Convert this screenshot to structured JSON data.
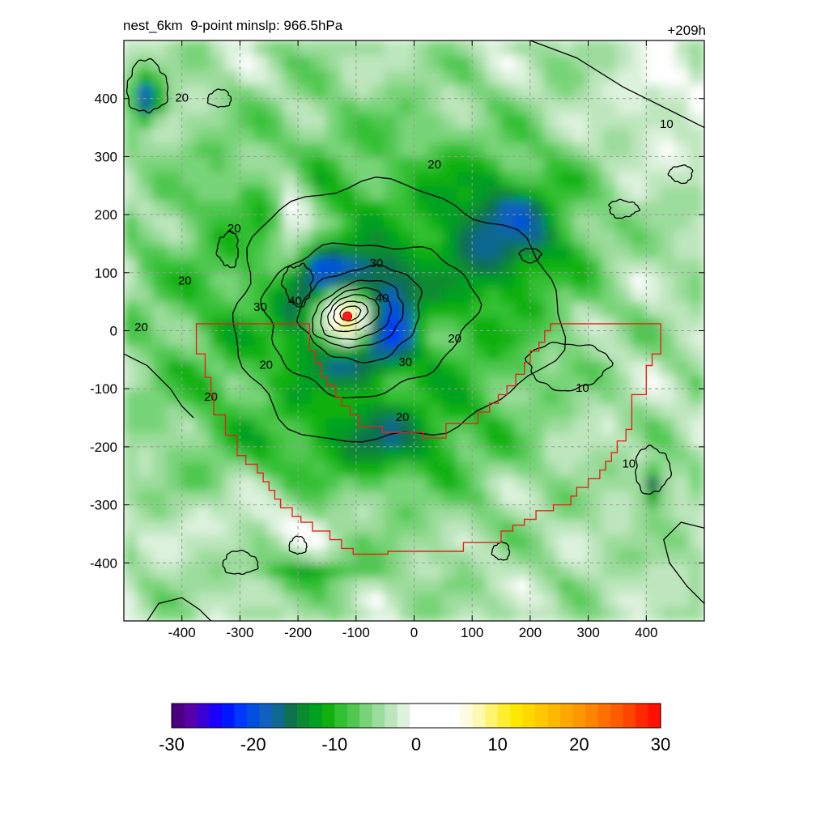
{
  "title_left": "nest_6km  9-point minslp: 966.5hPa",
  "title_right": "+209h",
  "chart_data": {
    "type": "heatmap",
    "title": "nest_6km  9-point minslp: 966.5hPa",
    "forecast_hour_label": "+209h",
    "x_ticks": [
      -400,
      -300,
      -200,
      -100,
      0,
      100,
      200,
      300,
      400
    ],
    "y_ticks": [
      400,
      300,
      200,
      100,
      0,
      -100,
      -200,
      -300,
      -400
    ],
    "xlim": [
      -500,
      500
    ],
    "ylim": [
      -500,
      500
    ],
    "grid": true,
    "grid_style": "dashed",
    "colorbar": {
      "min": -30,
      "max": 30,
      "tick_values": [
        -30,
        -20,
        -10,
        0,
        10,
        20,
        30
      ],
      "tick_labels": [
        "-30",
        "-20",
        "-10",
        "0",
        "10",
        "20",
        "30"
      ],
      "colors": [
        "#4b0082",
        "#5a00a8",
        "#3a00d4",
        "#1a00ff",
        "#0018ff",
        "#0038ff",
        "#0050e0",
        "#1060c0",
        "#106890",
        "#107050",
        "#0a8a30",
        "#00a020",
        "#10b010",
        "#30c030",
        "#50c850",
        "#78d478",
        "#9cdc9c",
        "#bde6bd",
        "#ddf2dd",
        "#ffffff",
        "#ffffff",
        "#ffffff",
        "#ffffff",
        "#fffbe0",
        "#fff8b0",
        "#fff370",
        "#ffee30",
        "#ffe800",
        "#ffd800",
        "#ffc800",
        "#ffb800",
        "#ffa800",
        "#ff9800",
        "#ff8400",
        "#ff7000",
        "#ff5c00",
        "#ff4400",
        "#ff2800",
        "#ff1000"
      ]
    },
    "contour_levels": [
      10,
      20,
      30,
      40
    ],
    "contour_labels": [
      {
        "text": "10",
        "x": 435,
        "y": 355
      },
      {
        "text": "20",
        "x": 35,
        "y": 285
      },
      {
        "text": "20",
        "x": -400,
        "y": 400
      },
      {
        "text": "20",
        "x": -310,
        "y": 175
      },
      {
        "text": "20",
        "x": -395,
        "y": 85
      },
      {
        "text": "20",
        "x": -470,
        "y": 5
      },
      {
        "text": "30",
        "x": -65,
        "y": 115
      },
      {
        "text": "30",
        "x": -265,
        "y": 40
      },
      {
        "text": "40",
        "x": -205,
        "y": 50
      },
      {
        "text": "40",
        "x": -55,
        "y": 55
      },
      {
        "text": "20",
        "x": -255,
        "y": -60
      },
      {
        "text": "20",
        "x": -350,
        "y": -115
      },
      {
        "text": "20",
        "x": 70,
        "y": -15
      },
      {
        "text": "30",
        "x": -15,
        "y": -55
      },
      {
        "text": "20",
        "x": -20,
        "y": -150
      },
      {
        "text": "10",
        "x": 290,
        "y": -100
      },
      {
        "text": "10",
        "x": 370,
        "y": -230
      }
    ],
    "storm_center": {
      "x": -115,
      "y": 25
    },
    "cell_size": 25,
    "boundary_polygon": [
      [
        -375,
        12
      ],
      [
        -375,
        -40
      ],
      [
        -360,
        -40
      ],
      [
        -360,
        -80
      ],
      [
        -350,
        -80
      ],
      [
        -350,
        -110
      ],
      [
        -345,
        -110
      ],
      [
        -345,
        -145
      ],
      [
        -325,
        -145
      ],
      [
        -325,
        -180
      ],
      [
        -305,
        -180
      ],
      [
        -305,
        -215
      ],
      [
        -290,
        -215
      ],
      [
        -290,
        -230
      ],
      [
        -270,
        -230
      ],
      [
        -270,
        -245
      ],
      [
        -260,
        -245
      ],
      [
        -260,
        -260
      ],
      [
        -250,
        -260
      ],
      [
        -250,
        -275
      ],
      [
        -240,
        -275
      ],
      [
        -240,
        -290
      ],
      [
        -230,
        -290
      ],
      [
        -230,
        -305
      ],
      [
        -210,
        -305
      ],
      [
        -210,
        -320
      ],
      [
        -195,
        -320
      ],
      [
        -195,
        -330
      ],
      [
        -175,
        -330
      ],
      [
        -175,
        -345
      ],
      [
        -145,
        -345
      ],
      [
        -145,
        -360
      ],
      [
        -125,
        -360
      ],
      [
        -125,
        -375
      ],
      [
        -105,
        -375
      ],
      [
        -105,
        -385
      ],
      [
        -45,
        -385
      ],
      [
        -45,
        -380
      ],
      [
        85,
        -380
      ],
      [
        85,
        -365
      ],
      [
        150,
        -365
      ],
      [
        150,
        -345
      ],
      [
        170,
        -345
      ],
      [
        170,
        -335
      ],
      [
        190,
        -335
      ],
      [
        190,
        -325
      ],
      [
        210,
        -325
      ],
      [
        210,
        -310
      ],
      [
        240,
        -310
      ],
      [
        240,
        -300
      ],
      [
        270,
        -300
      ],
      [
        270,
        -285
      ],
      [
        280,
        -285
      ],
      [
        280,
        -270
      ],
      [
        300,
        -270
      ],
      [
        300,
        -255
      ],
      [
        320,
        -255
      ],
      [
        320,
        -240
      ],
      [
        330,
        -240
      ],
      [
        330,
        -225
      ],
      [
        340,
        -225
      ],
      [
        340,
        -210
      ],
      [
        350,
        -210
      ],
      [
        350,
        -190
      ],
      [
        365,
        -190
      ],
      [
        365,
        -170
      ],
      [
        375,
        -170
      ],
      [
        375,
        -110
      ],
      [
        400,
        -110
      ],
      [
        400,
        -60
      ],
      [
        410,
        -60
      ],
      [
        410,
        -40
      ],
      [
        425,
        -40
      ],
      [
        425,
        12
      ],
      [
        235,
        12
      ],
      [
        235,
        0
      ],
      [
        225,
        0
      ],
      [
        225,
        -20
      ],
      [
        215,
        -20
      ],
      [
        215,
        -35
      ],
      [
        200,
        -35
      ],
      [
        200,
        -55
      ],
      [
        190,
        -55
      ],
      [
        190,
        -75
      ],
      [
        175,
        -75
      ],
      [
        175,
        -95
      ],
      [
        160,
        -95
      ],
      [
        160,
        -110
      ],
      [
        145,
        -110
      ],
      [
        145,
        -125
      ],
      [
        130,
        -125
      ],
      [
        130,
        -140
      ],
      [
        110,
        -140
      ],
      [
        110,
        -160
      ],
      [
        55,
        -160
      ],
      [
        55,
        -185
      ],
      [
        15,
        -185
      ],
      [
        15,
        -175
      ],
      [
        -55,
        -175
      ],
      [
        -55,
        -165
      ],
      [
        -95,
        -165
      ],
      [
        -95,
        -145
      ],
      [
        -110,
        -145
      ],
      [
        -110,
        -130
      ],
      [
        -125,
        -130
      ],
      [
        -125,
        -115
      ],
      [
        -135,
        -115
      ],
      [
        -135,
        -95
      ],
      [
        -150,
        -95
      ],
      [
        -150,
        -80
      ],
      [
        -160,
        -80
      ],
      [
        -160,
        -55
      ],
      [
        -170,
        -55
      ],
      [
        -170,
        -35
      ],
      [
        -180,
        -35
      ],
      [
        -180,
        12
      ]
    ]
  }
}
